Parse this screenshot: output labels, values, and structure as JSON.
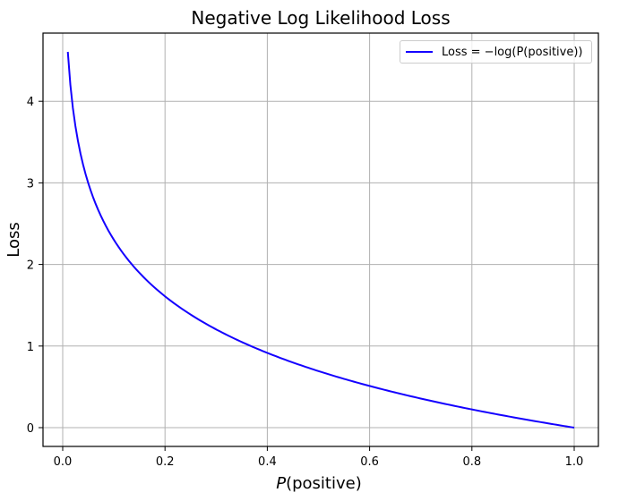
{
  "chart_data": {
    "type": "line",
    "title": "Negative Log Likelihood Loss",
    "xlabel": "P(positive)",
    "ylabel": "Loss",
    "xlim": [
      -0.04,
      1.04
    ],
    "ylim": [
      -0.23,
      4.83
    ],
    "xticks": [
      "0.0",
      "0.2",
      "0.4",
      "0.6",
      "0.8",
      "1.0"
    ],
    "yticks": [
      "0",
      "1",
      "2",
      "3",
      "4"
    ],
    "grid": true,
    "legend_position": "upper right",
    "series": [
      {
        "name": "Loss = −log(P(positive))",
        "color": "#1400ff",
        "x": [
          0.01,
          0.02,
          0.03,
          0.05,
          0.075,
          0.1,
          0.15,
          0.2,
          0.3,
          0.4,
          0.5,
          0.6,
          0.7,
          0.8,
          0.9,
          1.0
        ],
        "y": [
          4.605,
          3.912,
          3.507,
          2.996,
          2.59,
          2.303,
          1.897,
          1.609,
          1.204,
          0.916,
          0.693,
          0.511,
          0.357,
          0.223,
          0.105,
          0.0
        ]
      }
    ]
  },
  "legend": {
    "label": "Loss = −log(P(positive))"
  }
}
